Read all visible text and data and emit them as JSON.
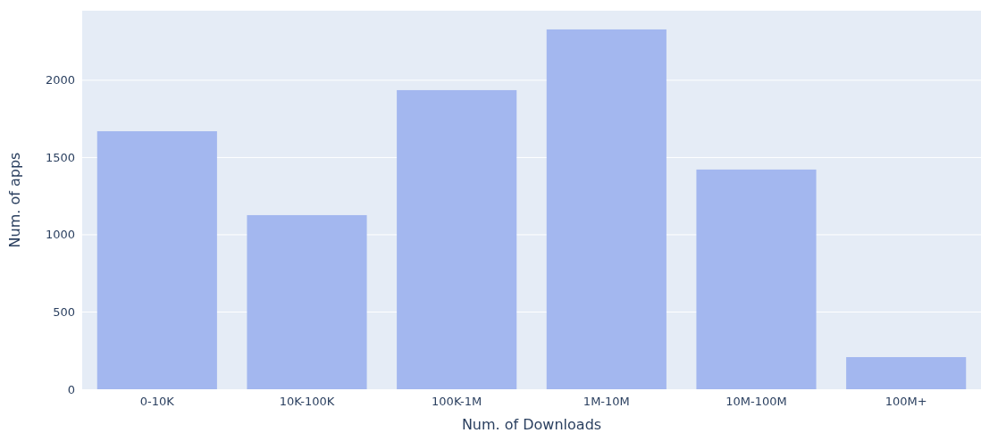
{
  "chart_data": {
    "type": "bar",
    "xlabel": "Num. of Downloads",
    "ylabel": "Num. of apps",
    "categories": [
      "0-10K",
      "10K-100K",
      "100K-1M",
      "1M-10M",
      "10M-100M",
      "100M+"
    ],
    "values": [
      1670,
      1127,
      1936,
      2329,
      1422,
      208
    ],
    "color": "#a3b7ef",
    "ylim": [
      0,
      2450
    ],
    "yticks": [
      0,
      500,
      1000,
      1500,
      2000
    ],
    "grid": "y"
  }
}
